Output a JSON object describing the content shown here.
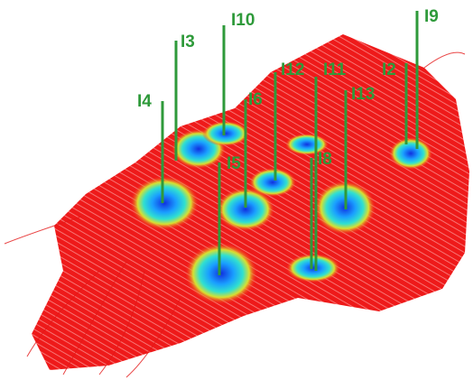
{
  "labels": [
    "I9",
    "I10",
    "I3",
    "I12",
    "I11",
    "I2",
    "I4",
    "I6",
    "I13",
    "I5",
    "I8"
  ]
}
